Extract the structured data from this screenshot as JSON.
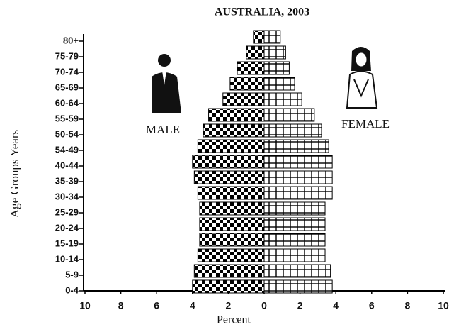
{
  "chart_data": {
    "type": "pyramid",
    "title": "AUSTRALIA, 2003",
    "y_label": "Age Groups Years",
    "x_label": "Percent",
    "categories": [
      "0-4",
      "5-9",
      "10-14",
      "15-19",
      "20-24",
      "25-29",
      "30-34",
      "35-39",
      "40-44",
      "54-49",
      "50-54",
      "55-59",
      "60-64",
      "65-69",
      "70-74",
      "75-79",
      "80+"
    ],
    "series": [
      {
        "name": "MALE",
        "color": "#000000",
        "values": [
          -4.0,
          -3.9,
          -3.7,
          -3.6,
          -3.6,
          -3.6,
          -3.7,
          -3.9,
          -4.0,
          -3.7,
          -3.4,
          -3.1,
          -2.3,
          -1.9,
          -1.5,
          -1.0,
          -0.6
        ]
      },
      {
        "name": "FEMALE",
        "color": "#ffffff",
        "values": [
          3.8,
          3.7,
          3.4,
          3.4,
          3.4,
          3.4,
          3.8,
          3.8,
          3.8,
          3.6,
          3.2,
          2.8,
          2.1,
          1.7,
          1.4,
          1.2,
          0.9
        ]
      }
    ],
    "xlim": [
      -10,
      10
    ],
    "xticks": [
      {
        "value": -10,
        "label": "10"
      },
      {
        "value": -8,
        "label": "8"
      },
      {
        "value": -6,
        "label": "6"
      },
      {
        "value": -4,
        "label": "4"
      },
      {
        "value": -2,
        "label": "2"
      },
      0,
      2,
      4,
      6,
      8,
      10
    ]
  }
}
